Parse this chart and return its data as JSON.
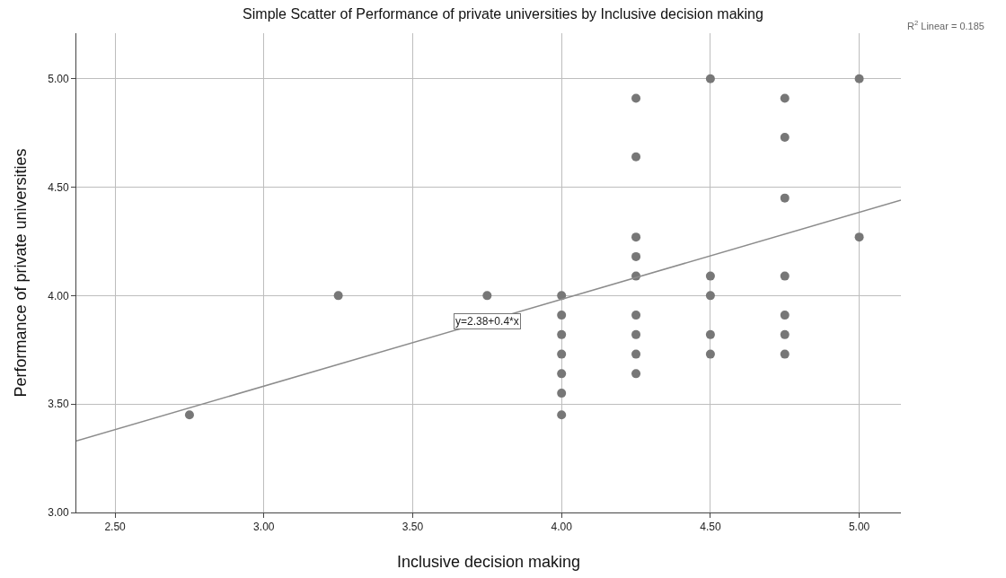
{
  "chart_data": {
    "type": "scatter",
    "title": "Simple Scatter of Performance of private universities by Inclusive decision making",
    "xlabel": "Inclusive decision making",
    "ylabel": "Performance of private universities",
    "series": [
      {
        "marker": "circle",
        "color": "#777777",
        "x": [
          2.75,
          3.25,
          3.75,
          4.0,
          4.0,
          4.0,
          4.0,
          4.0,
          4.0,
          4.0,
          4.25,
          4.25,
          4.25,
          4.25,
          4.25,
          4.25,
          4.25,
          4.25,
          4.25,
          4.5,
          4.5,
          4.5,
          4.5,
          4.5,
          4.75,
          4.75,
          4.75,
          4.75,
          4.75,
          4.75,
          4.75,
          5.0,
          5.0
        ],
        "values": [
          3.45,
          4.0,
          4.0,
          4.0,
          3.91,
          3.82,
          3.73,
          3.64,
          3.55,
          3.45,
          4.91,
          4.64,
          4.27,
          4.18,
          4.09,
          3.91,
          3.82,
          3.73,
          3.64,
          5.0,
          4.09,
          4.0,
          3.82,
          3.73,
          4.91,
          4.73,
          4.45,
          4.09,
          3.91,
          3.82,
          3.73,
          5.0,
          4.27
        ]
      },
      {
        "type": "line",
        "color": "#8c8c8c",
        "x": [
          2.37,
          5.14
        ],
        "values": [
          3.33,
          4.44
        ]
      }
    ],
    "annotations": [
      {
        "text": "y=2.38+0.4*x",
        "x": 3.75,
        "y": 3.88
      },
      "R$^{2}$ Linear = 0.185"
    ],
    "xlim": [
      2.37,
      5.14
    ],
    "ylim": [
      3.0,
      5.21
    ],
    "xticks": [
      {
        "value": 2.5,
        "label": "2.50"
      },
      {
        "value": 3.0,
        "label": "3.00"
      },
      {
        "value": 3.5,
        "label": "3.50"
      },
      {
        "value": 4.0,
        "label": "4.00"
      },
      {
        "value": 4.5,
        "label": "4.50"
      },
      {
        "value": 5.0,
        "label": "5.00"
      }
    ],
    "yticks": [
      {
        "value": 3.0,
        "label": "3.00"
      },
      {
        "value": 3.5,
        "label": "3.50"
      },
      {
        "value": 4.0,
        "label": "4.00"
      },
      {
        "value": 4.5,
        "label": "4.50"
      },
      {
        "value": 5.0,
        "label": "5.00"
      }
    ],
    "grid": true,
    "line_style": "solid"
  }
}
